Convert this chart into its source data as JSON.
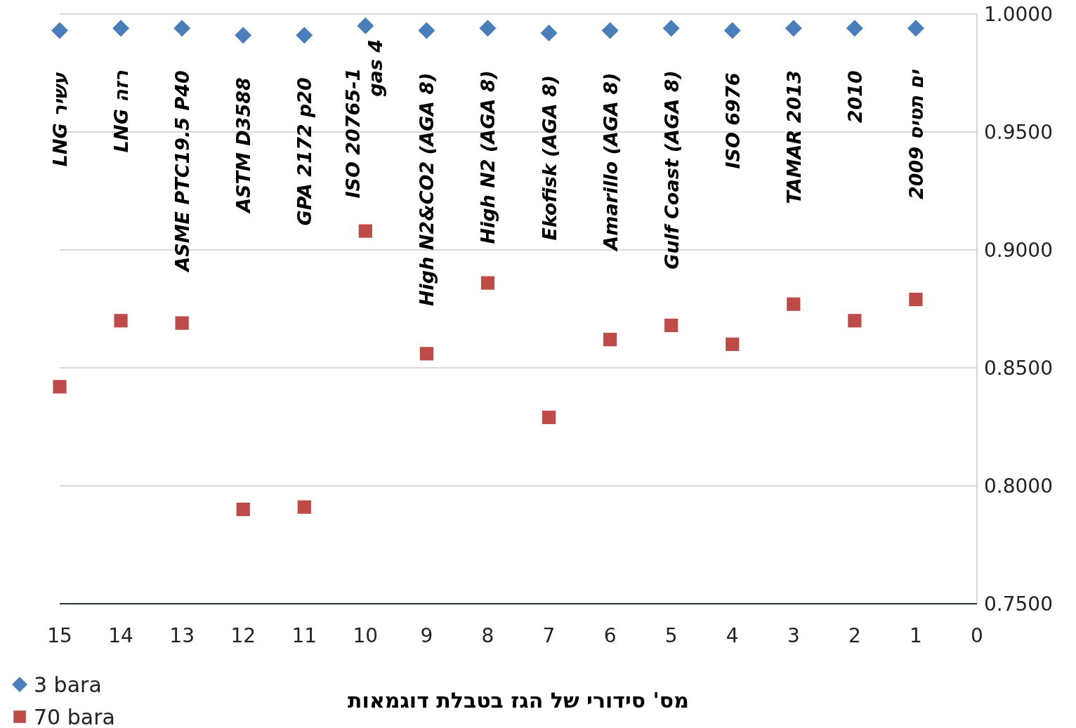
{
  "chart_data": {
    "type": "scatter",
    "xlabel": "מס' סידורי של הגז בטבלת דוגמאות",
    "x": [
      15,
      14,
      13,
      12,
      11,
      10,
      9,
      8,
      7,
      6,
      5,
      4,
      3,
      2,
      1
    ],
    "series": [
      {
        "name": "3 bara",
        "color": "#4a7ebb",
        "marker": "diamond",
        "values": [
          0.993,
          0.994,
          0.994,
          0.991,
          0.991,
          0.995,
          0.993,
          0.994,
          0.992,
          0.993,
          0.994,
          0.993,
          0.994,
          0.994,
          0.994
        ]
      },
      {
        "name": "70 bara",
        "color": "#be4b48",
        "marker": "square",
        "values": [
          0.842,
          0.87,
          0.869,
          0.79,
          0.791,
          0.908,
          0.856,
          0.886,
          0.829,
          0.862,
          0.868,
          0.86,
          0.877,
          0.87,
          0.879
        ]
      }
    ],
    "xlim": [
      15,
      0
    ],
    "xticks": [
      15,
      14,
      13,
      12,
      11,
      10,
      9,
      8,
      7,
      6,
      5,
      4,
      3,
      2,
      1,
      0
    ],
    "ylim": [
      0.75,
      1.0
    ],
    "yticks": [
      {
        "value": 0.75,
        "label": "0.7500"
      },
      {
        "value": 0.8,
        "label": "0.8000"
      },
      {
        "value": 0.85,
        "label": "0.8500"
      },
      {
        "value": 0.9,
        "label": "0.9000"
      },
      {
        "value": 0.95,
        "label": "0.9500"
      },
      {
        "value": 1.0,
        "label": "1.0000"
      }
    ],
    "grid": "y",
    "legend": "bottom left",
    "annotations": [
      {
        "text": "LNG עשיר",
        "x": 15,
        "y": 0.993
      },
      {
        "text": "LNG רזה",
        "x": 14,
        "y": 0.994
      },
      {
        "text": "ASME PTC19.5 P40",
        "x": 13,
        "y": 0.994
      },
      {
        "text": "ASTM D3588",
        "x": 12,
        "y": 0.991
      },
      {
        "text": "GPA 2172 p20",
        "x": 11,
        "y": 0.991
      },
      {
        "text": "ISO 20765-1\ngas 4",
        "x": 10,
        "y": 0.995
      },
      {
        "text": "High N2&CO2 (AGA 8)",
        "x": 9,
        "y": 0.993
      },
      {
        "text": "High N2 (AGA 8)",
        "x": 8,
        "y": 0.994
      },
      {
        "text": "Ekofisk (AGA 8)",
        "x": 7,
        "y": 0.992
      },
      {
        "text": "Amarillo (AGA 8)",
        "x": 6,
        "y": 0.993
      },
      {
        "text": "Gulf Coast (AGA 8)",
        "x": 5,
        "y": 0.994
      },
      {
        "text": "ISO 6976",
        "x": 4,
        "y": 0.993
      },
      {
        "text": "TAMAR  2013",
        "x": 3,
        "y": 0.994
      },
      {
        "text": "2010",
        "x": 2,
        "y": 0.994
      },
      {
        "text": "ים תטיס 2009",
        "x": 1,
        "y": 0.994
      }
    ]
  }
}
